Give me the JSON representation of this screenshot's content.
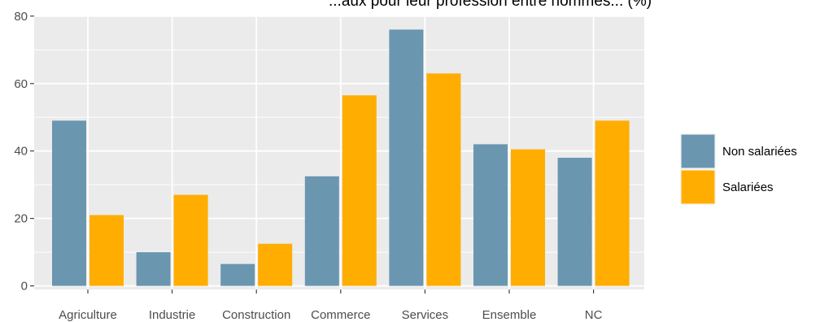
{
  "chart_data": {
    "type": "bar",
    "title_fragment": "...aux pour leur profession entre hommes... (%)",
    "categories": [
      "Agriculture",
      "Industrie",
      "Construction",
      "Commerce",
      "Services",
      "Ensemble",
      "NC"
    ],
    "series": [
      {
        "name": "Non salariées",
        "color": "#6b96b0",
        "values": [
          49,
          10,
          6.5,
          32.5,
          76,
          42,
          38
        ]
      },
      {
        "name": "Salariées",
        "color": "#ffad00",
        "values": [
          21,
          27,
          12.5,
          56.5,
          63,
          40.5,
          49
        ]
      }
    ],
    "ylim": [
      0,
      80
    ],
    "yticks": [
      0,
      20,
      40,
      60,
      80
    ],
    "xlabel": "",
    "ylabel": "",
    "grid": true,
    "legend_position": "right"
  }
}
